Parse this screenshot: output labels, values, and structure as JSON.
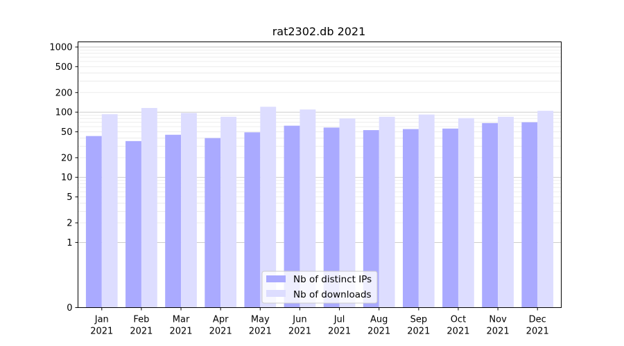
{
  "chart_data": {
    "type": "bar",
    "title": "rat2302.db 2021",
    "xlabel": "",
    "ylabel": "",
    "yscale": "symlog",
    "ylim": [
      0,
      1200
    ],
    "yticks": [
      0,
      1,
      2,
      5,
      10,
      20,
      50,
      100,
      200,
      500,
      1000
    ],
    "ytick_labels": [
      "0",
      "1",
      "2",
      "5",
      "10",
      "20",
      "50",
      "100",
      "200",
      "500",
      "1000"
    ],
    "grid": true,
    "legend_position": "bottom-center",
    "categories": [
      {
        "month": "Jan",
        "year": "2021"
      },
      {
        "month": "Feb",
        "year": "2021"
      },
      {
        "month": "Mar",
        "year": "2021"
      },
      {
        "month": "Apr",
        "year": "2021"
      },
      {
        "month": "May",
        "year": "2021"
      },
      {
        "month": "Jun",
        "year": "2021"
      },
      {
        "month": "Jul",
        "year": "2021"
      },
      {
        "month": "Aug",
        "year": "2021"
      },
      {
        "month": "Sep",
        "year": "2021"
      },
      {
        "month": "Oct",
        "year": "2021"
      },
      {
        "month": "Nov",
        "year": "2021"
      },
      {
        "month": "Dec",
        "year": "2021"
      }
    ],
    "series": [
      {
        "name": "Nb of distinct IPs",
        "color": "#aaaaff",
        "values": [
          43,
          36,
          45,
          40,
          49,
          62,
          58,
          53,
          55,
          56,
          68,
          70
        ]
      },
      {
        "name": "Nb of downloads",
        "color": "#ddddff",
        "values": [
          93,
          116,
          97,
          85,
          121,
          110,
          80,
          85,
          92,
          81,
          85,
          105
        ]
      }
    ]
  }
}
